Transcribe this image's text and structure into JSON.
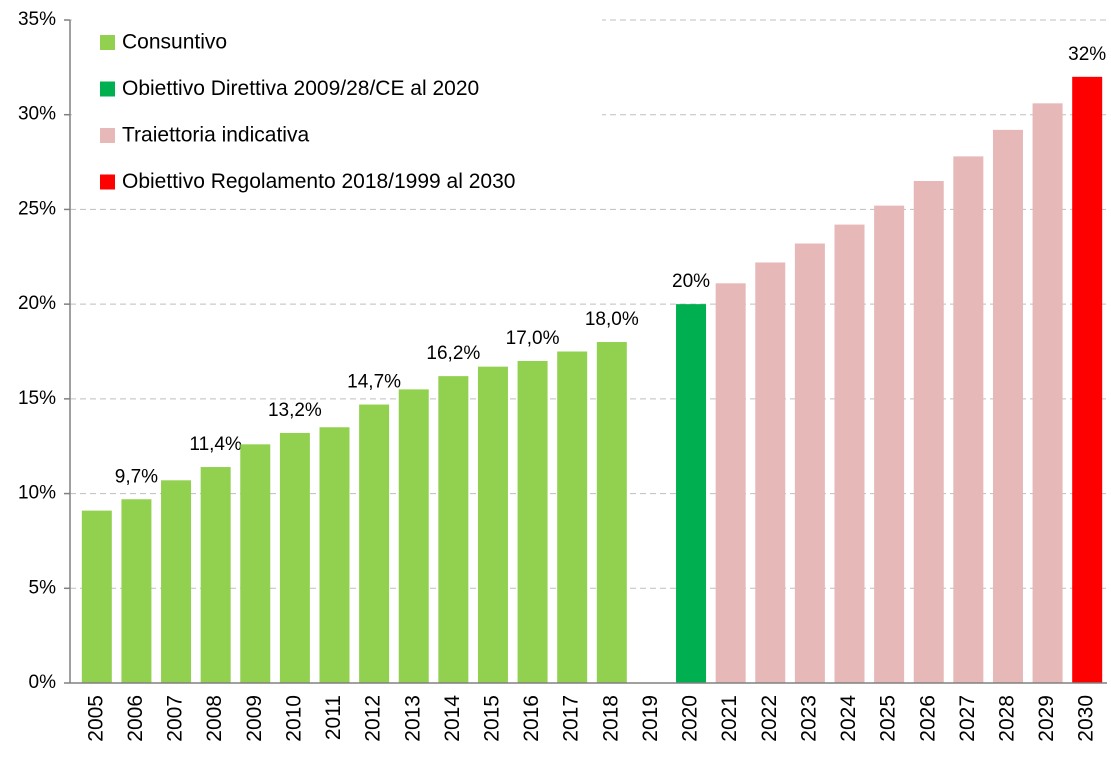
{
  "chart_data": {
    "type": "bar",
    "categories": [
      "2005",
      "2006",
      "2007",
      "2008",
      "2009",
      "2010",
      "2011",
      "2012",
      "2013",
      "2014",
      "2015",
      "2016",
      "2017",
      "2018",
      "2019",
      "2020",
      "2021",
      "2022",
      "2023",
      "2024",
      "2025",
      "2026",
      "2027",
      "2028",
      "2029",
      "2030"
    ],
    "series": [
      {
        "name": "Consuntivo",
        "color": "#92d050",
        "values": [
          9.1,
          9.7,
          10.7,
          11.4,
          12.6,
          13.2,
          13.5,
          14.7,
          15.5,
          16.2,
          16.7,
          17.0,
          17.5,
          18.0,
          null,
          null,
          null,
          null,
          null,
          null,
          null,
          null,
          null,
          null,
          null,
          null
        ],
        "value_labels": [
          null,
          "9,7%",
          null,
          "11,4%",
          null,
          "13,2%",
          null,
          "14,7%",
          null,
          "16,2%",
          null,
          "17,0%",
          null,
          "18,0%",
          null,
          null,
          null,
          null,
          null,
          null,
          null,
          null,
          null,
          null,
          null,
          null
        ]
      },
      {
        "name": "Obiettivo Direttiva 2009/28/CE al 2020",
        "color": "#00b050",
        "values": [
          null,
          null,
          null,
          null,
          null,
          null,
          null,
          null,
          null,
          null,
          null,
          null,
          null,
          null,
          null,
          20,
          null,
          null,
          null,
          null,
          null,
          null,
          null,
          null,
          null,
          null
        ],
        "value_labels": [
          null,
          null,
          null,
          null,
          null,
          null,
          null,
          null,
          null,
          null,
          null,
          null,
          null,
          null,
          null,
          "20%",
          null,
          null,
          null,
          null,
          null,
          null,
          null,
          null,
          null,
          null
        ]
      },
      {
        "name": "Traiettoria indicativa",
        "color": "#e6b8b7",
        "values": [
          null,
          null,
          null,
          null,
          null,
          null,
          null,
          null,
          null,
          null,
          null,
          null,
          null,
          null,
          null,
          null,
          21.1,
          22.2,
          23.2,
          24.2,
          25.2,
          26.5,
          27.8,
          29.2,
          30.6,
          null
        ]
      },
      {
        "name": "Obiettivo Regolamento 2018/1999 al 2030",
        "color": "#ff0000",
        "values": [
          null,
          null,
          null,
          null,
          null,
          null,
          null,
          null,
          null,
          null,
          null,
          null,
          null,
          null,
          null,
          null,
          null,
          null,
          null,
          null,
          null,
          null,
          null,
          null,
          null,
          32
        ],
        "value_labels": [
          null,
          null,
          null,
          null,
          null,
          null,
          null,
          null,
          null,
          null,
          null,
          null,
          null,
          null,
          null,
          null,
          null,
          null,
          null,
          null,
          null,
          null,
          null,
          null,
          null,
          "32%"
        ]
      }
    ],
    "ylim": [
      0,
      35
    ],
    "yticks": [
      {
        "value": 0,
        "label": "0%"
      },
      {
        "value": 5,
        "label": "5%"
      },
      {
        "value": 10,
        "label": "10%"
      },
      {
        "value": 15,
        "label": "15%"
      },
      {
        "value": 20,
        "label": "20%"
      },
      {
        "value": 25,
        "label": "25%"
      },
      {
        "value": 30,
        "label": "30%"
      },
      {
        "value": 35,
        "label": "35%"
      }
    ],
    "grid": true,
    "legend": "upper-left"
  }
}
